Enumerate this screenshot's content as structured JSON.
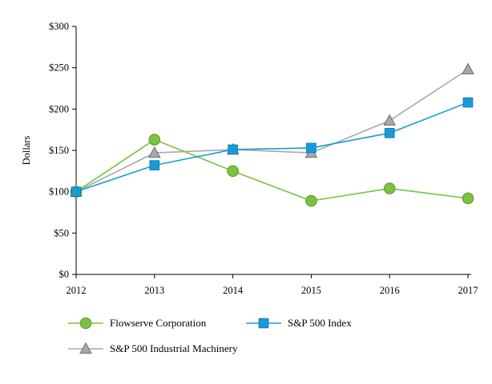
{
  "chart_data": {
    "type": "line",
    "title": "",
    "xlabel": "",
    "ylabel": "Dollars",
    "x": [
      "2012",
      "2013",
      "2014",
      "2015",
      "2016",
      "2017"
    ],
    "y_ticks": [
      "$0",
      "$50",
      "$100",
      "$150",
      "$200",
      "$250",
      "$300"
    ],
    "ylim": [
      0,
      300
    ],
    "grid": false,
    "legend_position": "bottom",
    "series": [
      {
        "name": "Flowserve Corporation",
        "marker": "circle",
        "color": "#7DC142",
        "edge": "#5E9732",
        "values": [
          100,
          163,
          125,
          89,
          104,
          92
        ]
      },
      {
        "name": "S&P 500 Index",
        "marker": "square",
        "color": "#189CD8",
        "edge": "#0F7BAE",
        "values": [
          100,
          132,
          151,
          153,
          171,
          208
        ]
      },
      {
        "name": "S&P 500 Industrial Machinery",
        "marker": "triangle",
        "color": "#A6A8AB",
        "edge": "#6D6E71",
        "values": [
          100,
          147,
          151,
          147,
          186,
          248
        ]
      }
    ]
  }
}
